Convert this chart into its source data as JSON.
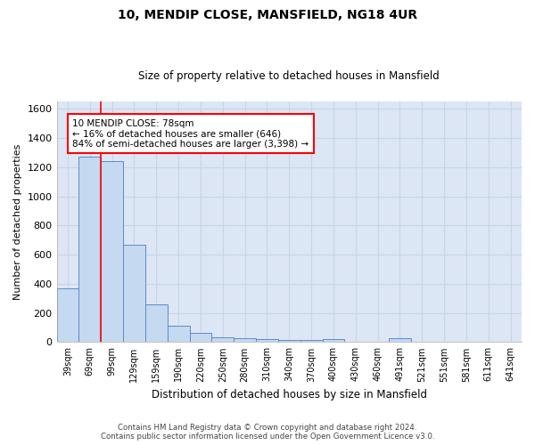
{
  "title": "10, MENDIP CLOSE, MANSFIELD, NG18 4UR",
  "subtitle": "Size of property relative to detached houses in Mansfield",
  "xlabel": "Distribution of detached houses by size in Mansfield",
  "ylabel": "Number of detached properties",
  "categories": [
    "39sqm",
    "69sqm",
    "99sqm",
    "129sqm",
    "159sqm",
    "190sqm",
    "220sqm",
    "250sqm",
    "280sqm",
    "310sqm",
    "340sqm",
    "370sqm",
    "400sqm",
    "430sqm",
    "460sqm",
    "491sqm",
    "521sqm",
    "551sqm",
    "581sqm",
    "611sqm",
    "641sqm"
  ],
  "values": [
    370,
    1270,
    1240,
    670,
    260,
    115,
    65,
    35,
    25,
    18,
    12,
    12,
    20,
    0,
    0,
    30,
    0,
    0,
    0,
    0,
    0
  ],
  "bar_color": "#c5d9f0",
  "bar_edge_color": "#5b8cc8",
  "annotation_box_text": "10 MENDIP CLOSE: 78sqm\n← 16% of detached houses are smaller (646)\n84% of semi-detached houses are larger (3,398) →",
  "ylim": [
    0,
    1650
  ],
  "yticks": [
    0,
    200,
    400,
    600,
    800,
    1000,
    1200,
    1400,
    1600
  ],
  "footer_text": "Contains HM Land Registry data © Crown copyright and database right 2024.\nContains public sector information licensed under the Open Government Licence v3.0.",
  "grid_color": "#c8d4e8",
  "background_color": "#dce6f5"
}
